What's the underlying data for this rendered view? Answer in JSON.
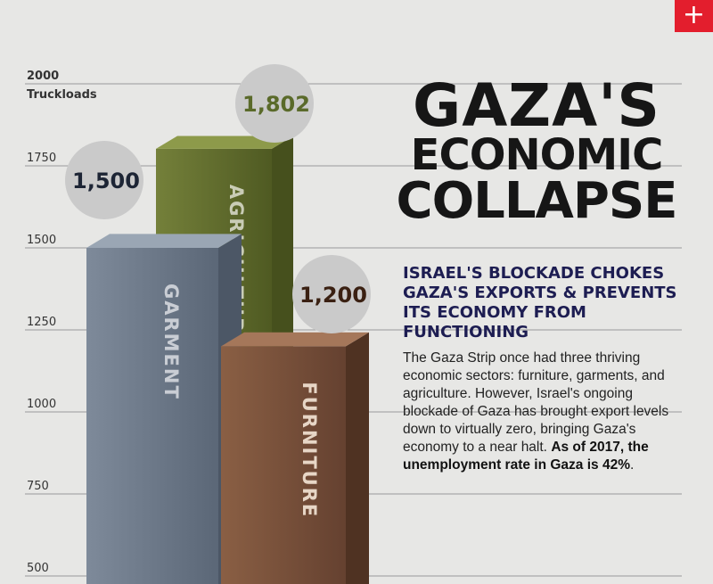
{
  "header": {
    "title_line1": "GAZA'S",
    "title_line2": "ECONOMIC",
    "title_line3": "COLLAPSE",
    "expand_button": "+"
  },
  "article": {
    "subhead": "ISRAEL'S BLOCKADE CHOKES GAZA'S EXPORTS & PREVENTS ITS ECONOMY FROM FUNCTIONING",
    "body": "The Gaza Strip once had three thriving economic sectors: furniture, garments, and agriculture. However, Israel's ongoing blockade of Gaza has brought export levels down to virtually zero, bringing Gaza's economy to a near halt.",
    "highlight": "As of 2017, the unemployment rate in Gaza is 42%",
    "highlight_end": "."
  },
  "chart_data": {
    "type": "bar",
    "ylabel": "Truckloads",
    "yticks": [
      2000,
      1750,
      1500,
      1250,
      1000,
      750,
      500
    ],
    "ylim": [
      500,
      2000
    ],
    "grid": true,
    "series": [
      {
        "category": "GARMENT",
        "value": 1500,
        "label": "1,500",
        "color": "#6f7c8d",
        "label_color": "#1d2535"
      },
      {
        "category": "AGRICULTURE",
        "value": 1802,
        "label": "1,802",
        "color": "#66702f",
        "label_color": "#5a6a2a"
      },
      {
        "category": "FURNITURE",
        "value": 1200,
        "label": "1,200",
        "color": "#7a5138",
        "label_color": "#3a2012"
      }
    ]
  }
}
